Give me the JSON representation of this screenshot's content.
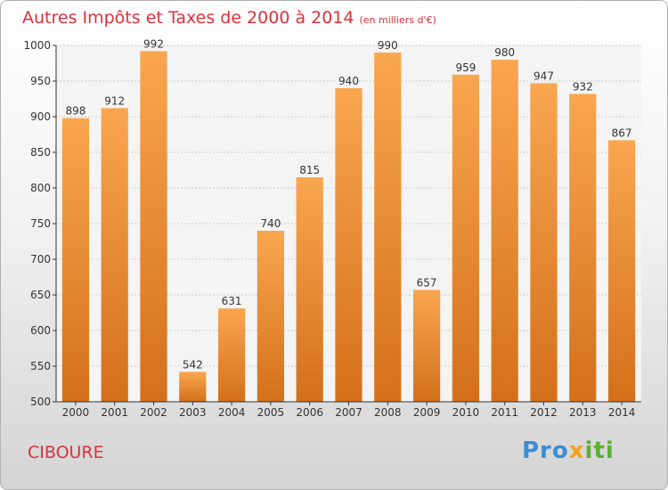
{
  "header": {
    "title": "Autres Impôts et Taxes de 2000 à 2014",
    "subtitle": "(en milliers d'€)"
  },
  "footer": {
    "city": "CIBOURE",
    "logo": [
      "Pro",
      "x",
      "iti"
    ]
  },
  "colors": {
    "title": "#e0303a",
    "bar_light": "#f9a650",
    "bar_dark": "#d4701a",
    "axis": "#333333",
    "grid": "#cccccc"
  },
  "chart_data": {
    "type": "bar",
    "title": "Autres Impôts et Taxes de 2000 à 2014",
    "subtitle": "(en milliers d'€)",
    "categories": [
      "2000",
      "2001",
      "2002",
      "2003",
      "2004",
      "2005",
      "2006",
      "2007",
      "2008",
      "2009",
      "2010",
      "2011",
      "2012",
      "2013",
      "2014"
    ],
    "values": [
      898,
      912,
      992,
      542,
      631,
      740,
      815,
      940,
      990,
      657,
      959,
      980,
      947,
      932,
      867
    ],
    "ylim": [
      500,
      1000
    ],
    "yticks": [
      500,
      550,
      600,
      650,
      700,
      750,
      800,
      850,
      900,
      950,
      1000
    ],
    "grid": true,
    "data_labels": true
  }
}
